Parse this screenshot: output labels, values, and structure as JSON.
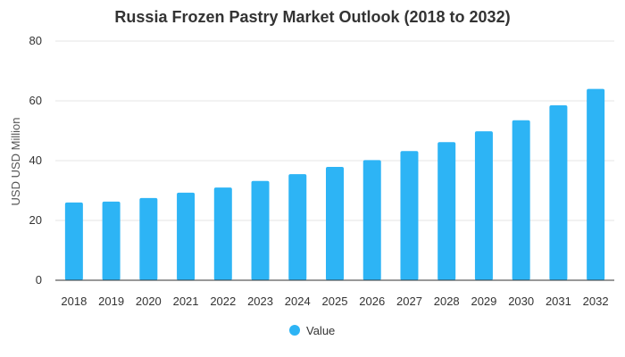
{
  "chart_data": {
    "type": "bar",
    "title": "Russia Frozen Pastry Market Outlook (2018 to 2032)",
    "xlabel": "",
    "ylabel": "USD USD Million",
    "categories": [
      "2018",
      "2019",
      "2020",
      "2021",
      "2022",
      "2023",
      "2024",
      "2025",
      "2026",
      "2027",
      "2028",
      "2029",
      "2030",
      "2031",
      "2032"
    ],
    "series": [
      {
        "name": "Value",
        "color": "#2db4f5",
        "values": [
          26,
          26.3,
          27.5,
          29.3,
          31,
          33.2,
          35.5,
          37.9,
          40.2,
          43.2,
          46.2,
          49.8,
          53.5,
          58.5,
          64
        ]
      }
    ],
    "ylim": [
      0,
      80
    ],
    "yticks": [
      0,
      20,
      40,
      60,
      80
    ],
    "grid": true,
    "legend": "bottom-center"
  }
}
